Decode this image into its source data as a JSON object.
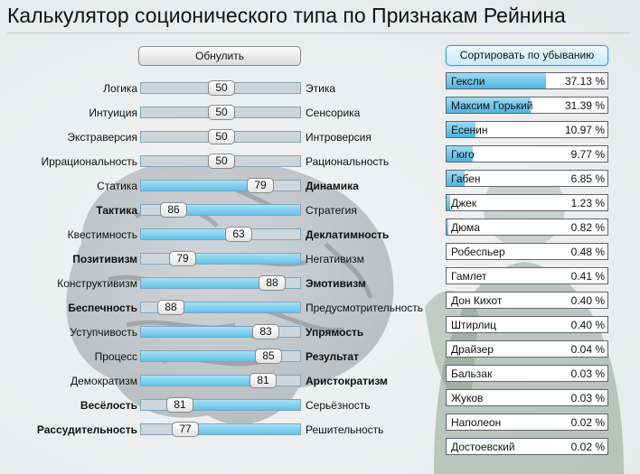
{
  "title": "Калькулятор соционического типа по Признакам Рейнина",
  "reset_label": "Обнулить",
  "sort_label": "Сортировать по убыванию",
  "colors": {
    "accent": "#64c2e8",
    "track_border": "#7ea5bf",
    "sort_border": "#3a9fd2"
  },
  "traits": [
    {
      "left": "Логика",
      "right": "Этика",
      "value": 50,
      "bold": "none"
    },
    {
      "left": "Интуиция",
      "right": "Сенсорика",
      "value": 50,
      "bold": "none"
    },
    {
      "left": "Экстраверсия",
      "right": "Интроверсия",
      "value": 50,
      "bold": "none"
    },
    {
      "left": "Иррациональность",
      "right": "Рациональность",
      "value": 50,
      "bold": "none"
    },
    {
      "left": "Статика",
      "right": "Динамика",
      "value": 79,
      "bold": "right"
    },
    {
      "left": "Тактика",
      "right": "Стратегия",
      "value": 86,
      "bold": "left"
    },
    {
      "left": "Квестимность",
      "right": "Деклатимность",
      "value": 63,
      "bold": "right"
    },
    {
      "left": "Позитивизм",
      "right": "Негативизм",
      "value": 79,
      "bold": "left"
    },
    {
      "left": "Конструктивизм",
      "right": "Эмотивизм",
      "value": 88,
      "bold": "right"
    },
    {
      "left": "Беспечность",
      "right": "Предусмотрительность",
      "value": 88,
      "bold": "left"
    },
    {
      "left": "Уступчивость",
      "right": "Упрямость",
      "value": 83,
      "bold": "right"
    },
    {
      "left": "Процесс",
      "right": "Результат",
      "value": 85,
      "bold": "right"
    },
    {
      "left": "Демократизм",
      "right": "Аристократизм",
      "value": 81,
      "bold": "right"
    },
    {
      "left": "Весёлость",
      "right": "Серьёзность",
      "value": 81,
      "bold": "left"
    },
    {
      "left": "Рассудительность",
      "right": "Решительность",
      "value": 77,
      "bold": "left"
    }
  ],
  "results": [
    {
      "name": "Гексли",
      "percent": "37.13 %",
      "value": 37.13
    },
    {
      "name": "Максим Горький",
      "percent": "31.39 %",
      "value": 31.39
    },
    {
      "name": "Есенин",
      "percent": "10.97 %",
      "value": 10.97
    },
    {
      "name": "Гюго",
      "percent": "9.77 %",
      "value": 9.77
    },
    {
      "name": "Габен",
      "percent": "6.85 %",
      "value": 6.85
    },
    {
      "name": "Джек",
      "percent": "1.23 %",
      "value": 1.23
    },
    {
      "name": "Дюма",
      "percent": "0.82 %",
      "value": 0.82
    },
    {
      "name": "Робеспьер",
      "percent": "0.48 %",
      "value": 0.48
    },
    {
      "name": "Гамлет",
      "percent": "0.41 %",
      "value": 0.41
    },
    {
      "name": "Дон Кихот",
      "percent": "0.40 %",
      "value": 0.4
    },
    {
      "name": "Штирлиц",
      "percent": "0.40 %",
      "value": 0.4
    },
    {
      "name": "Драйзер",
      "percent": "0.04 %",
      "value": 0.04
    },
    {
      "name": "Бальзак",
      "percent": "0.03 %",
      "value": 0.03
    },
    {
      "name": "Жуков",
      "percent": "0.03 %",
      "value": 0.03
    },
    {
      "name": "Наполеон",
      "percent": "0.02 %",
      "value": 0.02
    },
    {
      "name": "Достоевский",
      "percent": "0.02 %",
      "value": 0.02
    }
  ]
}
